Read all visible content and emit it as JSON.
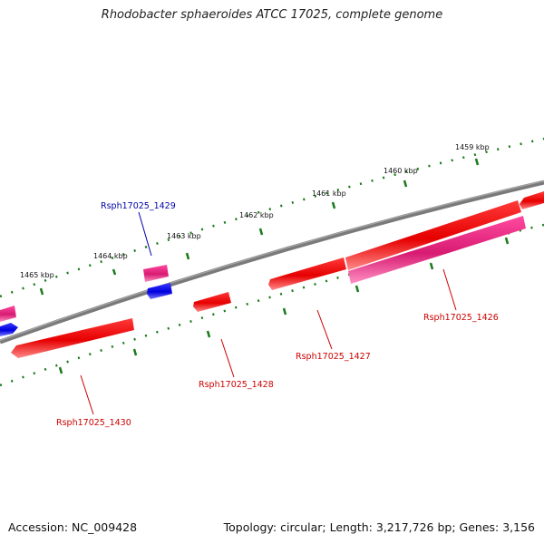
{
  "title": "Rhodobacter sphaeroides ATCC 17025, complete genome",
  "footer": {
    "accession": "Accession: NC_009428",
    "summary": "Topology: circular; Length: 3,217,726 bp; Genes: 3,156"
  },
  "colors": {
    "backbone": "#7a7a7a",
    "forward_gene": "#e60000",
    "forward_gene_alt": "#e0207a",
    "reverse_gene": "#1515e0",
    "tick": "#1a7a1a",
    "label_forward": "#cc0000",
    "label_reverse": "#0000aa"
  },
  "scale_labels": [
    "1459 kbp",
    "1460 kbp",
    "1461 kbp",
    "1462 kbp",
    "1463 kbp",
    "1464 kbp",
    "1465 kbp"
  ],
  "gene_labels": [
    {
      "text": "Rsph17025_1429",
      "strand": "reverse"
    },
    {
      "text": "Rsph17025_1426",
      "strand": "forward"
    },
    {
      "text": "Rsph17025_1427",
      "strand": "forward"
    },
    {
      "text": "Rsph17025_1428",
      "strand": "forward"
    },
    {
      "text": "Rsph17025_1430",
      "strand": "forward"
    }
  ]
}
